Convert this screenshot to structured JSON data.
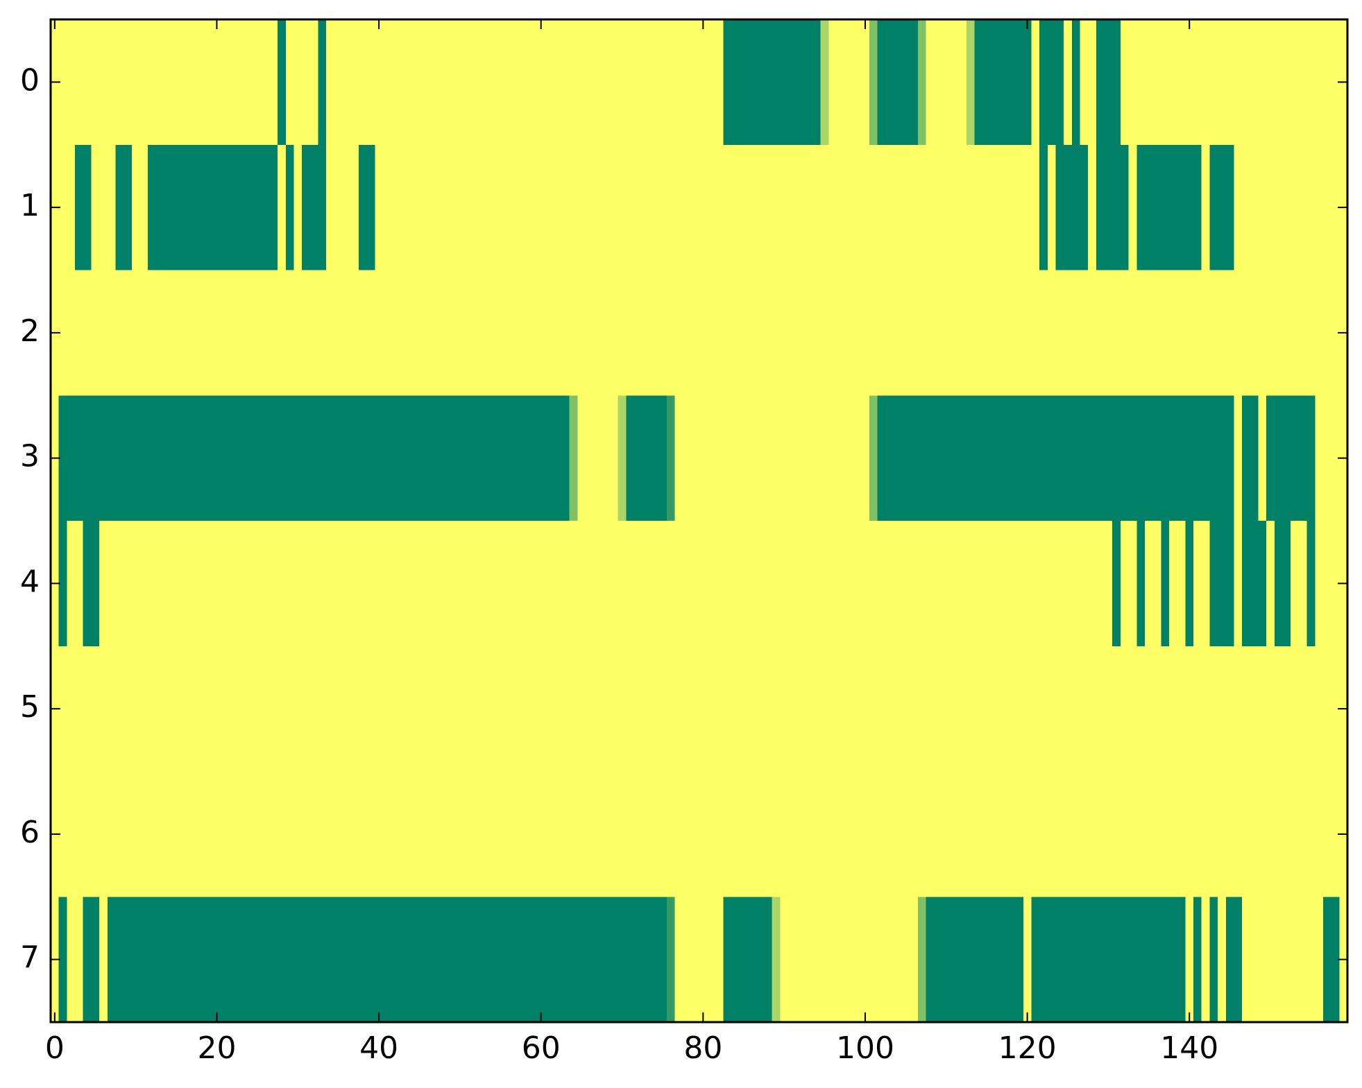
{
  "chart_data": {
    "type": "heatmap",
    "title": "",
    "xlabel": "",
    "ylabel": "",
    "xlim": [
      -0.5,
      159.5
    ],
    "ylim": [
      7.5,
      -0.5
    ],
    "x_ticks": [
      0,
      20,
      40,
      60,
      80,
      100,
      120,
      140
    ],
    "x_tick_labels": [
      "0",
      "20",
      "40",
      "60",
      "80",
      "100",
      "120",
      "140"
    ],
    "y_ticks": [
      0,
      1,
      2,
      3,
      4,
      5,
      6,
      7
    ],
    "y_tick_labels": [
      "0",
      "1",
      "2",
      "3",
      "4",
      "5",
      "6",
      "7"
    ],
    "grid": false,
    "colormap": "summer_r",
    "background_value": 0,
    "colors": {
      "low": "#ffff66",
      "mid_low": "#b3d966",
      "mid_high": "#4da866",
      "high": "#008066"
    },
    "rows": [
      {
        "row": 0,
        "segments": [
          {
            "start": 27.5,
            "end": 28.5,
            "value": 1
          },
          {
            "start": 32.5,
            "end": 33.5,
            "value": 1
          },
          {
            "start": 82.5,
            "end": 94.5,
            "value": 1
          },
          {
            "start": 94.5,
            "end": 95.5,
            "value": 0.33
          },
          {
            "start": 100.5,
            "end": 101.5,
            "value": 0.5
          },
          {
            "start": 101.5,
            "end": 106.5,
            "value": 1
          },
          {
            "start": 106.5,
            "end": 107.5,
            "value": 0.5
          },
          {
            "start": 112.5,
            "end": 113.5,
            "value": 0.33
          },
          {
            "start": 113.5,
            "end": 120.5,
            "value": 1
          },
          {
            "start": 121.5,
            "end": 124.5,
            "value": 1
          },
          {
            "start": 125.5,
            "end": 126.5,
            "value": 1
          },
          {
            "start": 128.5,
            "end": 131.5,
            "value": 1
          }
        ]
      },
      {
        "row": 1,
        "segments": [
          {
            "start": 2.5,
            "end": 4.5,
            "value": 1
          },
          {
            "start": 7.5,
            "end": 9.5,
            "value": 1
          },
          {
            "start": 11.5,
            "end": 27.5,
            "value": 1
          },
          {
            "start": 28.5,
            "end": 29.5,
            "value": 1
          },
          {
            "start": 30.5,
            "end": 33.5,
            "value": 1
          },
          {
            "start": 37.5,
            "end": 39.5,
            "value": 1
          },
          {
            "start": 121.5,
            "end": 122.5,
            "value": 1
          },
          {
            "start": 123.5,
            "end": 127.5,
            "value": 1
          },
          {
            "start": 128.5,
            "end": 132.5,
            "value": 1
          },
          {
            "start": 133.5,
            "end": 141.5,
            "value": 1
          },
          {
            "start": 142.5,
            "end": 145.5,
            "value": 1
          }
        ]
      },
      {
        "row": 2,
        "segments": []
      },
      {
        "row": 3,
        "segments": [
          {
            "start": 0.5,
            "end": 63.5,
            "value": 1
          },
          {
            "start": 63.5,
            "end": 64.5,
            "value": 0.5
          },
          {
            "start": 69.5,
            "end": 70.5,
            "value": 0.33
          },
          {
            "start": 70.5,
            "end": 75.5,
            "value": 1
          },
          {
            "start": 75.5,
            "end": 76.5,
            "value": 0.8
          },
          {
            "start": 100.5,
            "end": 101.5,
            "value": 0.5
          },
          {
            "start": 101.5,
            "end": 145.5,
            "value": 1
          },
          {
            "start": 146.5,
            "end": 148.5,
            "value": 1
          },
          {
            "start": 149.5,
            "end": 155.5,
            "value": 1
          }
        ]
      },
      {
        "row": 4,
        "segments": [
          {
            "start": 0.5,
            "end": 1.5,
            "value": 1
          },
          {
            "start": 3.5,
            "end": 5.5,
            "value": 1
          },
          {
            "start": 130.5,
            "end": 131.5,
            "value": 1
          },
          {
            "start": 133.5,
            "end": 134.5,
            "value": 1
          },
          {
            "start": 136.5,
            "end": 137.5,
            "value": 1
          },
          {
            "start": 139.5,
            "end": 140.5,
            "value": 1
          },
          {
            "start": 142.5,
            "end": 145.5,
            "value": 1
          },
          {
            "start": 146.5,
            "end": 149.5,
            "value": 1
          },
          {
            "start": 150.5,
            "end": 152.5,
            "value": 1
          },
          {
            "start": 154.5,
            "end": 155.5,
            "value": 1
          }
        ]
      },
      {
        "row": 5,
        "segments": []
      },
      {
        "row": 6,
        "segments": []
      },
      {
        "row": 7,
        "segments": [
          {
            "start": 0.5,
            "end": 1.5,
            "value": 1
          },
          {
            "start": 3.5,
            "end": 5.5,
            "value": 1
          },
          {
            "start": 6.5,
            "end": 75.5,
            "value": 1
          },
          {
            "start": 75.5,
            "end": 76.5,
            "value": 0.8
          },
          {
            "start": 82.5,
            "end": 88.5,
            "value": 1
          },
          {
            "start": 88.5,
            "end": 89.5,
            "value": 0.33
          },
          {
            "start": 106.5,
            "end": 107.5,
            "value": 0.5
          },
          {
            "start": 107.5,
            "end": 119.5,
            "value": 1
          },
          {
            "start": 120.5,
            "end": 139.5,
            "value": 1
          },
          {
            "start": 140.5,
            "end": 141.5,
            "value": 1
          },
          {
            "start": 142.5,
            "end": 143.5,
            "value": 1
          },
          {
            "start": 144.5,
            "end": 146.5,
            "value": 1
          },
          {
            "start": 156.5,
            "end": 158.5,
            "value": 1
          }
        ]
      }
    ]
  }
}
